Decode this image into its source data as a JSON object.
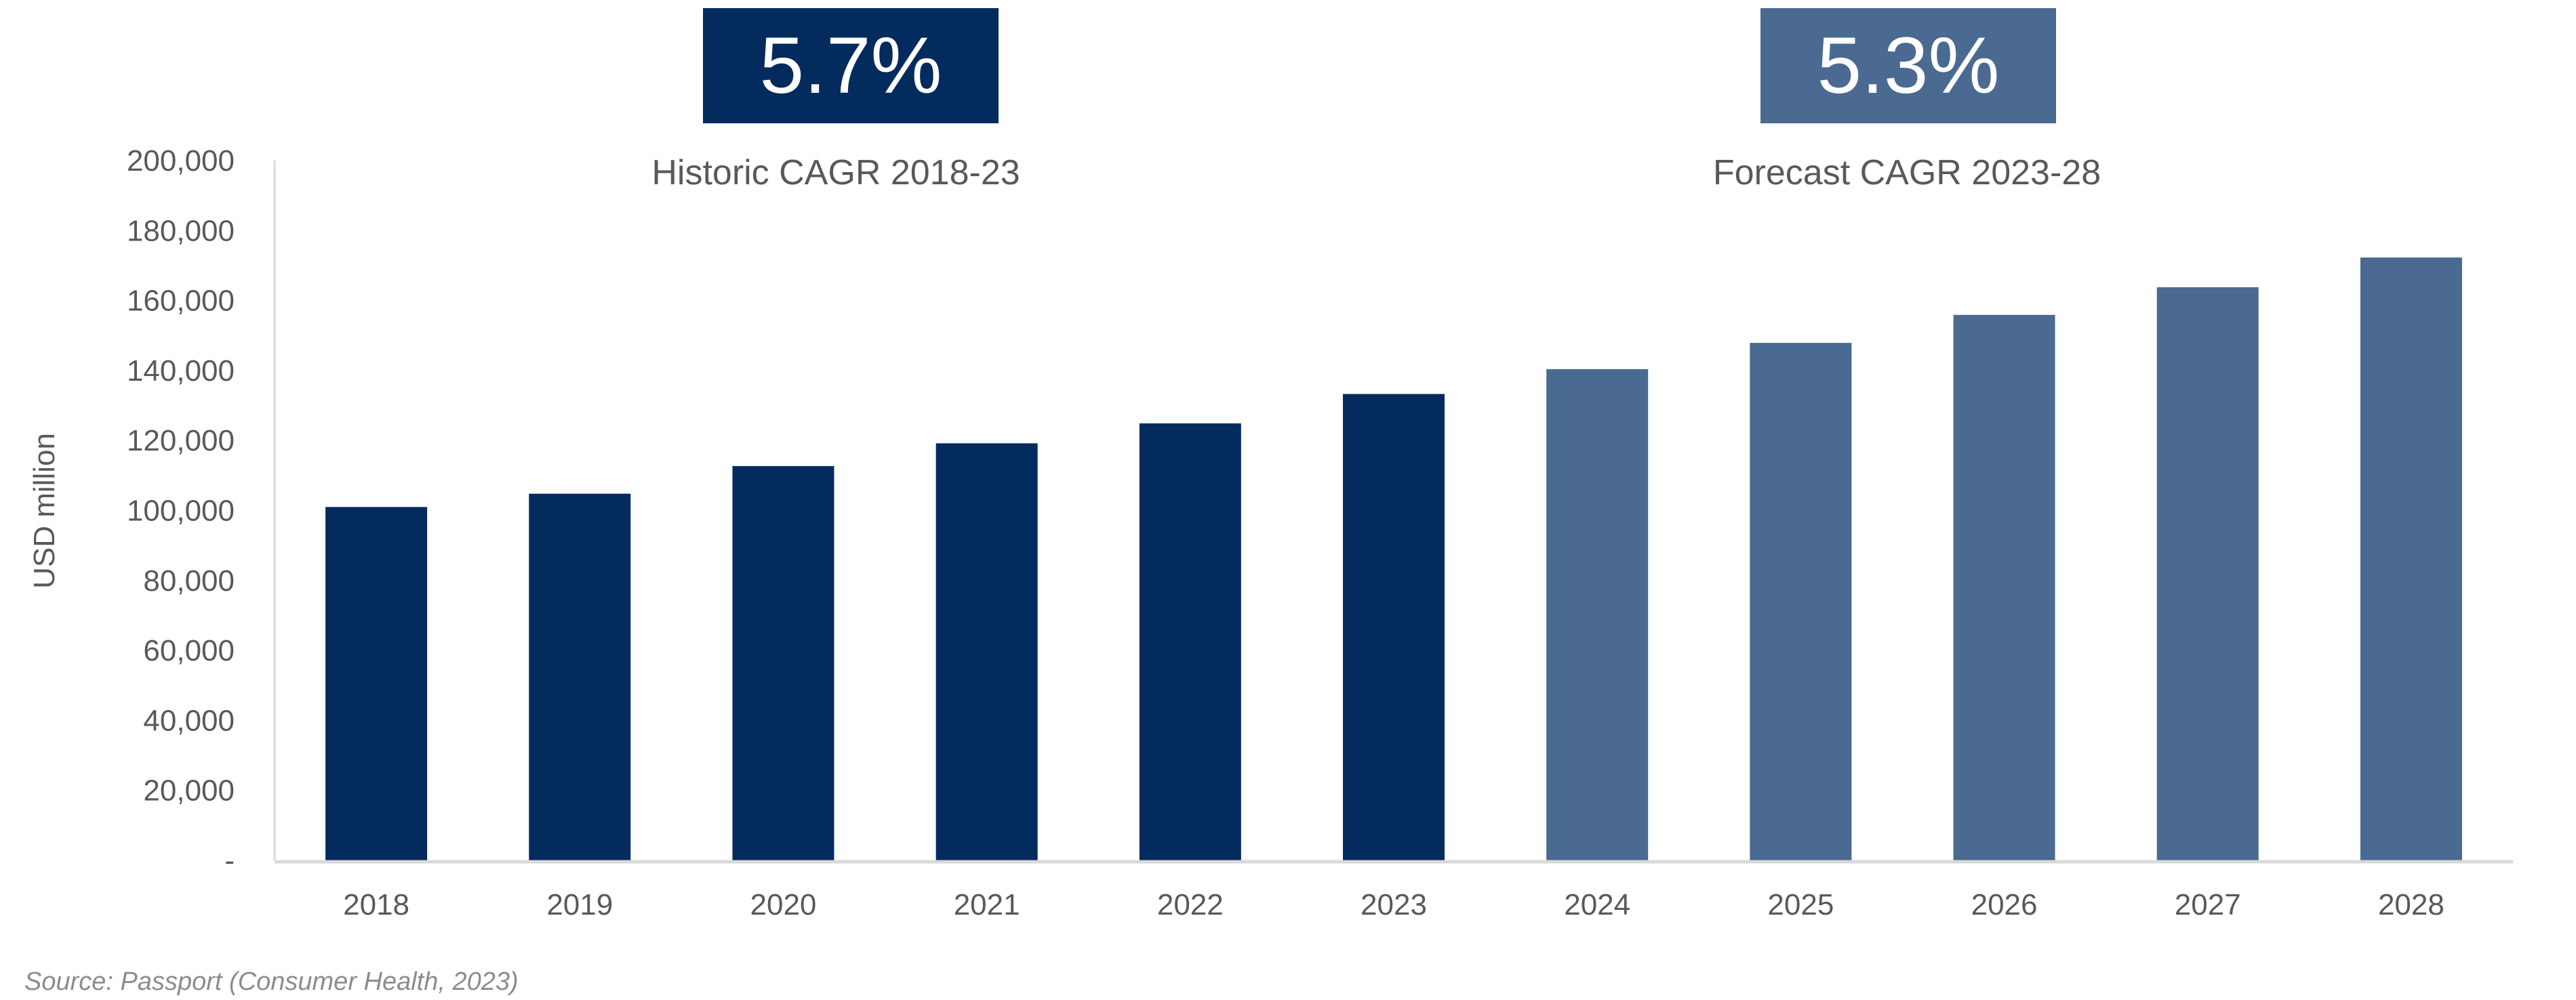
{
  "chart_data": {
    "type": "bar",
    "categories": [
      "2018",
      "2019",
      "2020",
      "2021",
      "2022",
      "2023",
      "2024",
      "2025",
      "2026",
      "2027",
      "2028"
    ],
    "values": [
      101000,
      104800,
      112700,
      119200,
      124900,
      133300,
      140400,
      147900,
      155900,
      163800,
      172300
    ],
    "series_phase": [
      "historic",
      "historic",
      "historic",
      "historic",
      "historic",
      "historic",
      "forecast",
      "forecast",
      "forecast",
      "forecast",
      "forecast"
    ],
    "colors": {
      "historic": "#032B5E",
      "forecast": "#4A6A91"
    },
    "ylabel": "USD million",
    "xlabel": "",
    "ylim": [
      0,
      200000
    ],
    "yticks": [
      0,
      20000,
      40000,
      60000,
      80000,
      100000,
      120000,
      140000,
      160000,
      180000,
      200000
    ],
    "ytick_labels": [
      "-",
      "20,000",
      "40,000",
      "60,000",
      "80,000",
      "100,000",
      "120,000",
      "140,000",
      "160,000",
      "180,000",
      "200,000"
    ],
    "grid": false,
    "annotations": [
      {
        "value": "5.7%",
        "label": "Historic CAGR 2018-23",
        "color": "#032B5E"
      },
      {
        "value": "5.3%",
        "label": "Forecast CAGR 2023-28",
        "color": "#4A6A91"
      }
    ]
  },
  "source": "Source: Passport (Consumer Health, 2023)"
}
